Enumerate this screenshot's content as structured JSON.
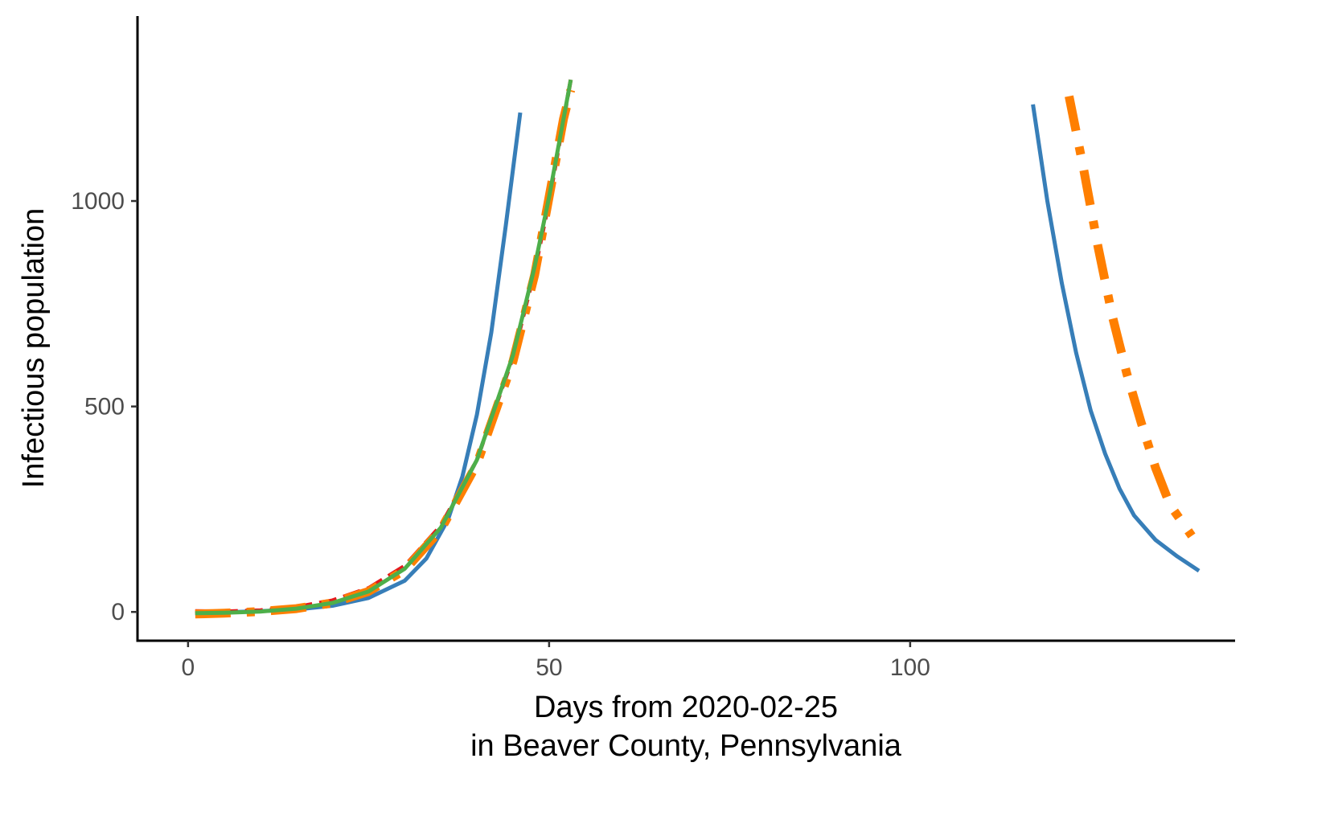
{
  "chart_data": {
    "type": "line",
    "xlabel_line1": "Days from 2020-02-25",
    "xlabel_line2": "in Beaver County, Pennsylvania",
    "ylabel": "Infectious population",
    "xlim": [
      -7,
      145
    ],
    "ylim": [
      -70,
      1450
    ],
    "x_ticks": [
      {
        "value": 0,
        "label": "0"
      },
      {
        "value": 50,
        "label": "50"
      },
      {
        "value": 100,
        "label": "100"
      }
    ],
    "y_ticks": [
      {
        "value": 0,
        "label": "0"
      },
      {
        "value": 500,
        "label": "500"
      },
      {
        "value": 1000,
        "label": "1000"
      }
    ],
    "grid": false,
    "legend": "none",
    "series": [
      {
        "color": "#377eb8",
        "dash": "solid",
        "segments": [
          [
            [
              1,
              -3
            ],
            [
              5,
              -1
            ],
            [
              10,
              2
            ],
            [
              15,
              6
            ],
            [
              20,
              15
            ],
            [
              25,
              34
            ],
            [
              30,
              76
            ],
            [
              33,
              130
            ],
            [
              36,
              225
            ],
            [
              38,
              330
            ],
            [
              40,
              480
            ],
            [
              42,
              680
            ],
            [
              44,
              940
            ],
            [
              46,
              1215
            ]
          ],
          [
            [
              117,
              1235
            ],
            [
              119,
              1000
            ],
            [
              121,
              800
            ],
            [
              123,
              630
            ],
            [
              125,
              490
            ],
            [
              127,
              385
            ],
            [
              129,
              300
            ],
            [
              131,
              235
            ],
            [
              134,
              175
            ],
            [
              137,
              135
            ],
            [
              140,
              100
            ]
          ]
        ]
      },
      {
        "color": "#e41a1c",
        "dash": "longdash",
        "segments": [
          [
            [
              1,
              2
            ],
            [
              5,
              1
            ],
            [
              10,
              4
            ],
            [
              15,
              12
            ],
            [
              20,
              28
            ],
            [
              25,
              58
            ],
            [
              30,
              112
            ],
            [
              35,
              210
            ],
            [
              40,
              370
            ],
            [
              45,
              620
            ],
            [
              48,
              830
            ],
            [
              50,
              1000
            ],
            [
              53,
              1295
            ]
          ]
        ]
      },
      {
        "color": "#ff7f00",
        "dash": "dashdot",
        "segments": [
          [
            [
              1,
              -5
            ],
            [
              5,
              -3
            ],
            [
              10,
              1
            ],
            [
              15,
              8
            ],
            [
              20,
              22
            ],
            [
              25,
              50
            ],
            [
              30,
              102
            ],
            [
              35,
              200
            ],
            [
              40,
              360
            ],
            [
              45,
              610
            ],
            [
              48,
              820
            ],
            [
              50,
              1010
            ],
            [
              52,
              1200
            ],
            [
              53,
              1270
            ]
          ],
          [
            [
              122,
              1255
            ],
            [
              124,
              1080
            ],
            [
              126,
              890
            ],
            [
              128,
              720
            ],
            [
              130,
              580
            ],
            [
              132,
              460
            ],
            [
              134,
              350
            ],
            [
              136,
              260
            ],
            [
              139,
              185
            ]
          ]
        ]
      },
      {
        "color": "#4daf4a",
        "dash": "solid",
        "segments": [
          [
            [
              1,
              -3
            ],
            [
              5,
              -2
            ],
            [
              10,
              1
            ],
            [
              15,
              8
            ],
            [
              20,
              22
            ],
            [
              25,
              50
            ],
            [
              30,
              105
            ],
            [
              35,
              205
            ],
            [
              40,
              370
            ],
            [
              45,
              625
            ],
            [
              48,
              840
            ],
            [
              50,
              1010
            ],
            [
              53,
              1295
            ]
          ]
        ]
      }
    ]
  }
}
